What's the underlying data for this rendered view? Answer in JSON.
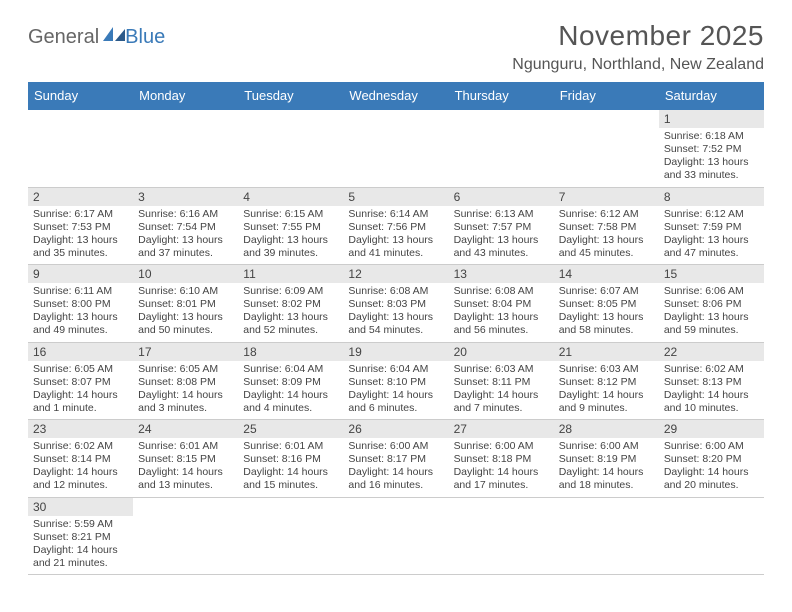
{
  "logo": {
    "general": "General",
    "blue": "Blue"
  },
  "title": "November 2025",
  "location": "Ngunguru, Northland, New Zealand",
  "colors": {
    "header_bg": "#3a7ab8",
    "header_text": "#ffffff",
    "daynum_bg": "#e8e8e8",
    "row_border": "#3a7ab8",
    "text": "#444444"
  },
  "day_headers": [
    "Sunday",
    "Monday",
    "Tuesday",
    "Wednesday",
    "Thursday",
    "Friday",
    "Saturday"
  ],
  "weeks": [
    [
      null,
      null,
      null,
      null,
      null,
      null,
      {
        "n": "1",
        "sr": "Sunrise: 6:18 AM",
        "ss": "Sunset: 7:52 PM",
        "dl": "Daylight: 13 hours and 33 minutes."
      }
    ],
    [
      {
        "n": "2",
        "sr": "Sunrise: 6:17 AM",
        "ss": "Sunset: 7:53 PM",
        "dl": "Daylight: 13 hours and 35 minutes."
      },
      {
        "n": "3",
        "sr": "Sunrise: 6:16 AM",
        "ss": "Sunset: 7:54 PM",
        "dl": "Daylight: 13 hours and 37 minutes."
      },
      {
        "n": "4",
        "sr": "Sunrise: 6:15 AM",
        "ss": "Sunset: 7:55 PM",
        "dl": "Daylight: 13 hours and 39 minutes."
      },
      {
        "n": "5",
        "sr": "Sunrise: 6:14 AM",
        "ss": "Sunset: 7:56 PM",
        "dl": "Daylight: 13 hours and 41 minutes."
      },
      {
        "n": "6",
        "sr": "Sunrise: 6:13 AM",
        "ss": "Sunset: 7:57 PM",
        "dl": "Daylight: 13 hours and 43 minutes."
      },
      {
        "n": "7",
        "sr": "Sunrise: 6:12 AM",
        "ss": "Sunset: 7:58 PM",
        "dl": "Daylight: 13 hours and 45 minutes."
      },
      {
        "n": "8",
        "sr": "Sunrise: 6:12 AM",
        "ss": "Sunset: 7:59 PM",
        "dl": "Daylight: 13 hours and 47 minutes."
      }
    ],
    [
      {
        "n": "9",
        "sr": "Sunrise: 6:11 AM",
        "ss": "Sunset: 8:00 PM",
        "dl": "Daylight: 13 hours and 49 minutes."
      },
      {
        "n": "10",
        "sr": "Sunrise: 6:10 AM",
        "ss": "Sunset: 8:01 PM",
        "dl": "Daylight: 13 hours and 50 minutes."
      },
      {
        "n": "11",
        "sr": "Sunrise: 6:09 AM",
        "ss": "Sunset: 8:02 PM",
        "dl": "Daylight: 13 hours and 52 minutes."
      },
      {
        "n": "12",
        "sr": "Sunrise: 6:08 AM",
        "ss": "Sunset: 8:03 PM",
        "dl": "Daylight: 13 hours and 54 minutes."
      },
      {
        "n": "13",
        "sr": "Sunrise: 6:08 AM",
        "ss": "Sunset: 8:04 PM",
        "dl": "Daylight: 13 hours and 56 minutes."
      },
      {
        "n": "14",
        "sr": "Sunrise: 6:07 AM",
        "ss": "Sunset: 8:05 PM",
        "dl": "Daylight: 13 hours and 58 minutes."
      },
      {
        "n": "15",
        "sr": "Sunrise: 6:06 AM",
        "ss": "Sunset: 8:06 PM",
        "dl": "Daylight: 13 hours and 59 minutes."
      }
    ],
    [
      {
        "n": "16",
        "sr": "Sunrise: 6:05 AM",
        "ss": "Sunset: 8:07 PM",
        "dl": "Daylight: 14 hours and 1 minute."
      },
      {
        "n": "17",
        "sr": "Sunrise: 6:05 AM",
        "ss": "Sunset: 8:08 PM",
        "dl": "Daylight: 14 hours and 3 minutes."
      },
      {
        "n": "18",
        "sr": "Sunrise: 6:04 AM",
        "ss": "Sunset: 8:09 PM",
        "dl": "Daylight: 14 hours and 4 minutes."
      },
      {
        "n": "19",
        "sr": "Sunrise: 6:04 AM",
        "ss": "Sunset: 8:10 PM",
        "dl": "Daylight: 14 hours and 6 minutes."
      },
      {
        "n": "20",
        "sr": "Sunrise: 6:03 AM",
        "ss": "Sunset: 8:11 PM",
        "dl": "Daylight: 14 hours and 7 minutes."
      },
      {
        "n": "21",
        "sr": "Sunrise: 6:03 AM",
        "ss": "Sunset: 8:12 PM",
        "dl": "Daylight: 14 hours and 9 minutes."
      },
      {
        "n": "22",
        "sr": "Sunrise: 6:02 AM",
        "ss": "Sunset: 8:13 PM",
        "dl": "Daylight: 14 hours and 10 minutes."
      }
    ],
    [
      {
        "n": "23",
        "sr": "Sunrise: 6:02 AM",
        "ss": "Sunset: 8:14 PM",
        "dl": "Daylight: 14 hours and 12 minutes."
      },
      {
        "n": "24",
        "sr": "Sunrise: 6:01 AM",
        "ss": "Sunset: 8:15 PM",
        "dl": "Daylight: 14 hours and 13 minutes."
      },
      {
        "n": "25",
        "sr": "Sunrise: 6:01 AM",
        "ss": "Sunset: 8:16 PM",
        "dl": "Daylight: 14 hours and 15 minutes."
      },
      {
        "n": "26",
        "sr": "Sunrise: 6:00 AM",
        "ss": "Sunset: 8:17 PM",
        "dl": "Daylight: 14 hours and 16 minutes."
      },
      {
        "n": "27",
        "sr": "Sunrise: 6:00 AM",
        "ss": "Sunset: 8:18 PM",
        "dl": "Daylight: 14 hours and 17 minutes."
      },
      {
        "n": "28",
        "sr": "Sunrise: 6:00 AM",
        "ss": "Sunset: 8:19 PM",
        "dl": "Daylight: 14 hours and 18 minutes."
      },
      {
        "n": "29",
        "sr": "Sunrise: 6:00 AM",
        "ss": "Sunset: 8:20 PM",
        "dl": "Daylight: 14 hours and 20 minutes."
      }
    ],
    [
      {
        "n": "30",
        "sr": "Sunrise: 5:59 AM",
        "ss": "Sunset: 8:21 PM",
        "dl": "Daylight: 14 hours and 21 minutes."
      },
      null,
      null,
      null,
      null,
      null,
      null
    ]
  ]
}
